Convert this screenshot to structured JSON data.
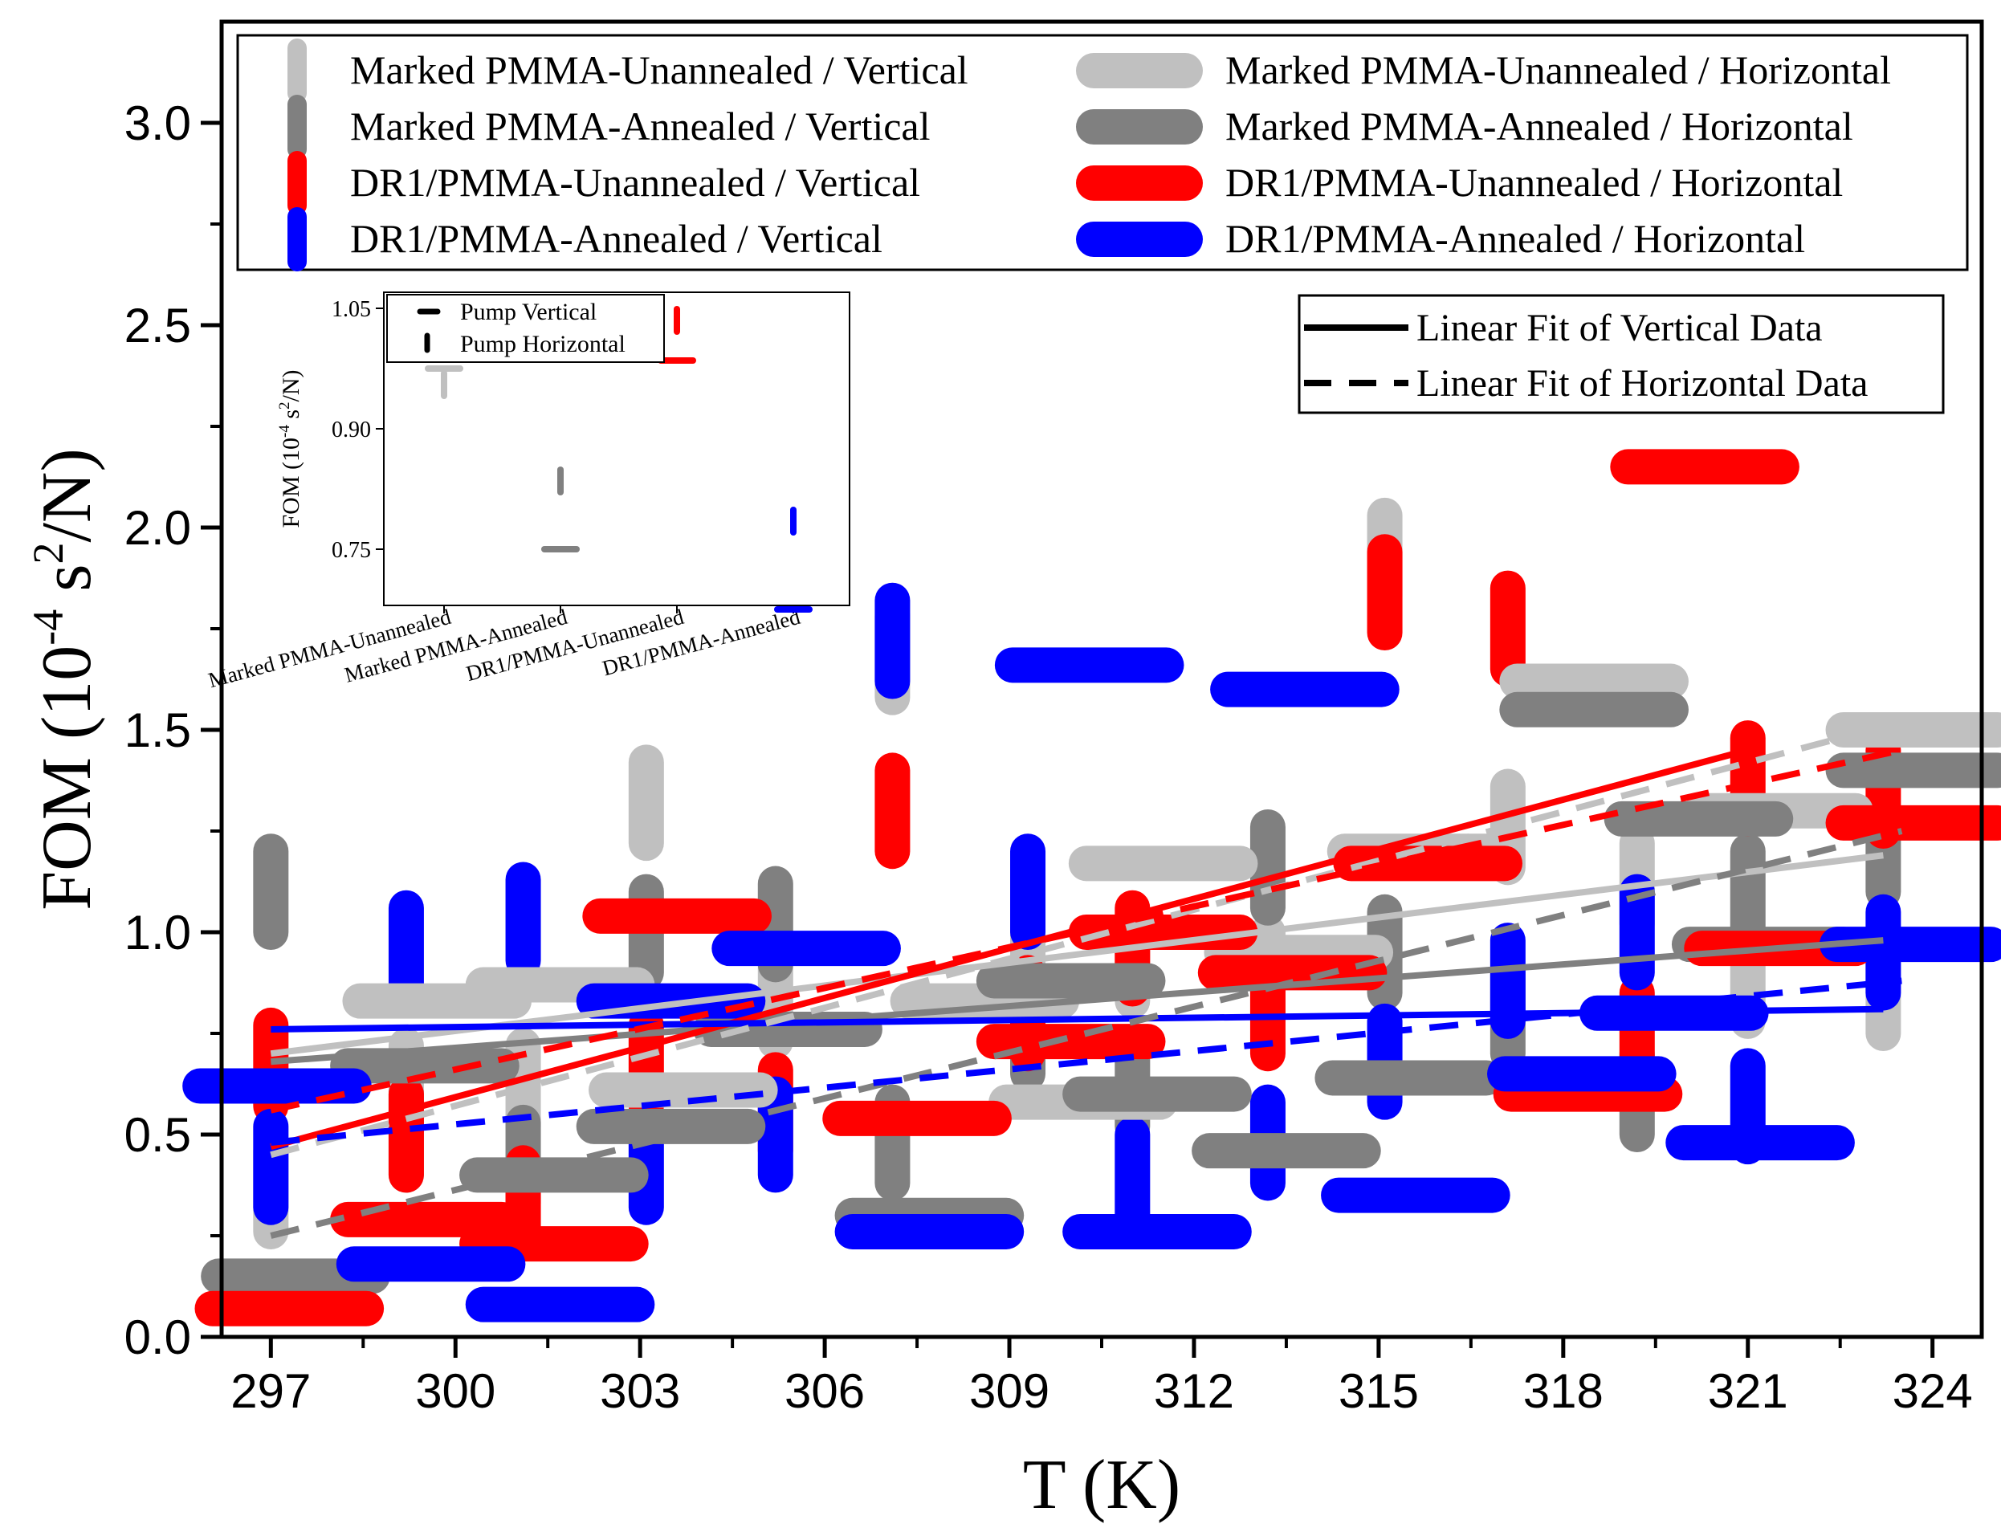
{
  "chart_data": {
    "type": "scatter",
    "xlabel": "T (K)",
    "ylabel": {
      "main": "FOM (10",
      "exp": "-4",
      "unit": " s",
      "exp2": "2",
      "tail": "/N)"
    },
    "xlim": [
      296.2,
      324.8
    ],
    "ylim": [
      0,
      3.25
    ],
    "xticks": [
      297,
      300,
      303,
      306,
      309,
      312,
      315,
      318,
      321,
      324
    ],
    "xtick_labels": [
      "297",
      "300",
      "303",
      "306",
      "309",
      "312",
      "315",
      "318",
      "321",
      "324"
    ],
    "yticks": [
      0,
      0.5,
      1.0,
      1.5,
      2.0,
      2.5,
      3.0
    ],
    "ytick_labels": [
      "0.0",
      "0.5",
      "1.0",
      "1.5",
      "2.0",
      "2.5",
      "3.0"
    ],
    "colors": {
      "mpu": "#c0c0c0",
      "mpa": "#808080",
      "dru": "#ff0000",
      "dra": "#0000ff"
    },
    "series": [
      {
        "key": "mpu",
        "name": "Marked PMMA-Unannealed / Vertical",
        "orientation": "vertical",
        "points": [
          [
            297.0,
            0.36
          ],
          [
            299.2,
            0.62
          ],
          [
            301.1,
            0.62
          ],
          [
            303.1,
            1.32
          ],
          [
            305.2,
            0.83
          ],
          [
            307.1,
            1.68
          ],
          [
            309.3,
            0.9
          ],
          [
            311.0,
            0.93
          ],
          [
            313.2,
            0.9
          ],
          [
            315.1,
            1.93
          ],
          [
            317.1,
            1.26
          ],
          [
            319.2,
            1.12
          ],
          [
            321.0,
            0.88
          ],
          [
            323.2,
            0.85
          ]
        ]
      },
      {
        "key": "mpa",
        "name": "Marked PMMA-Annealed / Vertical",
        "orientation": "vertical",
        "points": [
          [
            297.0,
            1.1
          ],
          [
            299.2,
            0.5
          ],
          [
            301.1,
            0.43
          ],
          [
            303.1,
            1.0
          ],
          [
            305.2,
            1.02
          ],
          [
            307.1,
            0.48
          ],
          [
            309.3,
            0.75
          ],
          [
            311.0,
            0.62
          ],
          [
            313.2,
            1.16
          ],
          [
            315.1,
            0.95
          ],
          [
            317.1,
            0.8
          ],
          [
            319.2,
            0.6
          ],
          [
            321.0,
            1.1
          ],
          [
            323.2,
            1.2
          ]
        ]
      },
      {
        "key": "dru",
        "name": "DR1/PMMA-Unannealed / Vertical",
        "orientation": "vertical",
        "points": [
          [
            297.0,
            0.67
          ],
          [
            299.2,
            0.5
          ],
          [
            301.1,
            0.33
          ],
          [
            303.1,
            0.67
          ],
          [
            305.2,
            0.56
          ],
          [
            307.1,
            1.3
          ],
          [
            309.3,
            0.8
          ],
          [
            311.0,
            0.96
          ],
          [
            313.2,
            0.8
          ],
          [
            315.1,
            1.84
          ],
          [
            317.1,
            1.75
          ],
          [
            319.2,
            0.75
          ],
          [
            321.0,
            1.38
          ],
          [
            323.2,
            1.35
          ]
        ]
      },
      {
        "key": "dra",
        "name": "DR1/PMMA-Annealed / Vertical",
        "orientation": "vertical",
        "points": [
          [
            297.0,
            0.42
          ],
          [
            299.2,
            0.96
          ],
          [
            301.1,
            1.03
          ],
          [
            303.1,
            0.42
          ],
          [
            305.2,
            0.5
          ],
          [
            307.1,
            1.72
          ],
          [
            309.3,
            1.1
          ],
          [
            311.0,
            0.4
          ],
          [
            313.2,
            0.48
          ],
          [
            315.1,
            0.68
          ],
          [
            317.1,
            0.88
          ],
          [
            319.2,
            1.0
          ],
          [
            321.0,
            0.57
          ],
          [
            323.2,
            0.95
          ]
        ]
      },
      {
        "key": "mpu",
        "name": "Marked PMMA-Unannealed / Horizontal",
        "orientation": "horizontal",
        "points": [
          [
            299.7,
            0.83
          ],
          [
            301.7,
            0.87
          ],
          [
            303.7,
            0.61
          ],
          [
            308.6,
            0.83
          ],
          [
            310.2,
            0.58
          ],
          [
            311.5,
            1.17
          ],
          [
            313.7,
            0.95
          ],
          [
            315.7,
            1.2
          ],
          [
            318.5,
            1.62
          ],
          [
            321.5,
            1.3
          ],
          [
            323.8,
            1.5
          ]
        ]
      },
      {
        "key": "mpa",
        "name": "Marked PMMA-Annealed / Horizontal",
        "orientation": "horizontal",
        "points": [
          [
            297.4,
            0.15
          ],
          [
            299.5,
            0.67
          ],
          [
            301.6,
            0.4
          ],
          [
            303.5,
            0.52
          ],
          [
            305.4,
            0.76
          ],
          [
            307.7,
            0.3
          ],
          [
            310.0,
            0.88
          ],
          [
            311.4,
            0.6
          ],
          [
            313.5,
            0.46
          ],
          [
            315.5,
            0.64
          ],
          [
            318.5,
            1.55
          ],
          [
            320.2,
            1.28
          ],
          [
            321.3,
            0.97
          ],
          [
            323.8,
            1.4
          ]
        ]
      },
      {
        "key": "dru",
        "name": "DR1/PMMA-Unannealed / Horizontal",
        "orientation": "horizontal",
        "points": [
          [
            297.3,
            0.07
          ],
          [
            299.5,
            0.29
          ],
          [
            301.6,
            0.23
          ],
          [
            303.6,
            1.04
          ],
          [
            307.5,
            0.54
          ],
          [
            310.0,
            0.73
          ],
          [
            311.5,
            1.0
          ],
          [
            313.6,
            0.9
          ],
          [
            315.8,
            1.17
          ],
          [
            318.4,
            0.6
          ],
          [
            320.3,
            2.15
          ],
          [
            321.5,
            0.96
          ],
          [
            323.8,
            1.27
          ]
        ]
      },
      {
        "key": "dra",
        "name": "DR1/PMMA-Annealed / Horizontal",
        "orientation": "horizontal",
        "points": [
          [
            297.1,
            0.62
          ],
          [
            299.6,
            0.18
          ],
          [
            301.7,
            0.08
          ],
          [
            303.5,
            0.83
          ],
          [
            305.7,
            0.96
          ],
          [
            307.7,
            0.26
          ],
          [
            310.3,
            1.66
          ],
          [
            311.4,
            0.26
          ],
          [
            313.8,
            1.6
          ],
          [
            315.6,
            0.35
          ],
          [
            318.3,
            0.65
          ],
          [
            319.8,
            0.8
          ],
          [
            321.2,
            0.48
          ],
          [
            323.7,
            0.97
          ]
        ]
      }
    ],
    "fits": [
      {
        "key": "mpu",
        "style": "solid",
        "x": [
          297.0,
          323.2
        ],
        "y": [
          0.7,
          1.19
        ]
      },
      {
        "key": "mpa",
        "style": "solid",
        "x": [
          297.0,
          323.2
        ],
        "y": [
          0.68,
          0.98
        ]
      },
      {
        "key": "dru",
        "style": "solid",
        "x": [
          297.0,
          321.0
        ],
        "y": [
          0.47,
          1.45
        ]
      },
      {
        "key": "dra",
        "style": "solid",
        "x": [
          297.0,
          323.2
        ],
        "y": [
          0.76,
          0.81
        ]
      },
      {
        "key": "mpu",
        "style": "dashed",
        "x": [
          297.0,
          323.5
        ],
        "y": [
          0.45,
          1.52
        ]
      },
      {
        "key": "mpa",
        "style": "dashed",
        "x": [
          297.0,
          323.5
        ],
        "y": [
          0.25,
          1.25
        ]
      },
      {
        "key": "dru",
        "style": "dashed",
        "x": [
          297.0,
          323.5
        ],
        "y": [
          0.56,
          1.45
        ]
      },
      {
        "key": "dra",
        "style": "dashed",
        "x": [
          297.0,
          323.5
        ],
        "y": [
          0.48,
          0.88
        ]
      }
    ],
    "legend": {
      "placement": "top",
      "left_column": [
        {
          "key": "mpu",
          "label": "Marked PMMA-Unannealed / Vertical"
        },
        {
          "key": "mpa",
          "label": "Marked PMMA-Annealed / Vertical"
        },
        {
          "key": "dru",
          "label": "DR1/PMMA-Unannealed / Vertical"
        },
        {
          "key": "dra",
          "label": "DR1/PMMA-Annealed / Vertical"
        }
      ],
      "right_column": [
        {
          "key": "mpu",
          "label": "Marked PMMA-Unannealed / Horizontal"
        },
        {
          "key": "mpa",
          "label": "Marked PMMA-Annealed / Horizontal"
        },
        {
          "key": "dru",
          "label": "DR1/PMMA-Unannealed / Horizontal"
        },
        {
          "key": "dra",
          "label": "DR1/PMMA-Annealed / Horizontal"
        }
      ]
    },
    "fit_legend": {
      "placement": "top-right",
      "solid": "Linear Fit of Vertical Data",
      "dashed": "Linear Fit of Horizontal Data"
    },
    "inset": {
      "placement": "top-left",
      "type": "scatter",
      "ylabel": {
        "main": "FOM (10",
        "exp": "-4",
        "unit": " s",
        "exp2": "2",
        "tail": "/N)"
      },
      "ylim": [
        0.68,
        1.07
      ],
      "yticks": [
        0.75,
        0.9,
        1.05
      ],
      "ytick_labels": [
        "0.75",
        "0.90",
        "1.05"
      ],
      "categories": [
        "Marked PMMA-Unannealed",
        "Marked PMMA-Annealed",
        "DR1/PMMA-Unannealed",
        "DR1/PMMA-Annealed"
      ],
      "colors": [
        "#c0c0c0",
        "#808080",
        "#ff0000",
        "#0000ff"
      ],
      "pump_vertical": [
        0.975,
        0.75,
        0.985,
        0.675
      ],
      "pump_horizontal": [
        0.955,
        0.835,
        1.035,
        0.785
      ],
      "legend": {
        "placement": "top-left",
        "vertical": "Pump Vertical",
        "horizontal": "Pump Horizontal"
      }
    }
  }
}
